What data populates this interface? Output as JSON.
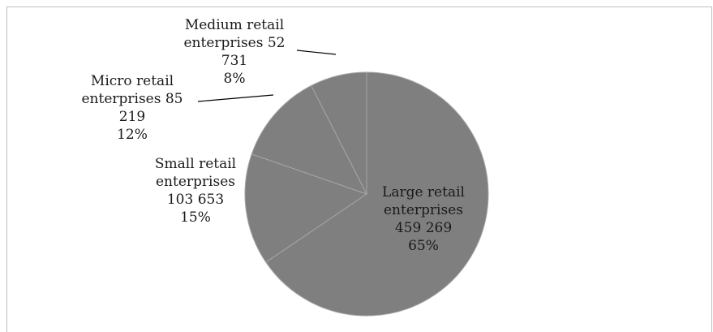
{
  "chart_data": {
    "type": "pie",
    "title": "",
    "slices": [
      {
        "name": "Large retail enterprises",
        "value": 459269,
        "value_label": "459 269",
        "percent": 65,
        "percent_label": "65%",
        "label_lines": [
          "Large retail",
          "enterprises",
          "459 269",
          "65%"
        ],
        "color": "#7f7f7f"
      },
      {
        "name": "Small retail enterprises",
        "value": 103653,
        "value_label": "103 653",
        "percent": 15,
        "percent_label": "15%",
        "label_lines": [
          "Small retail",
          "enterprises",
          "103 653",
          "15%"
        ],
        "color": "#7f7f7f"
      },
      {
        "name": "Micro retail enterprises",
        "value": 85219,
        "value_label": "85 219",
        "percent": 12,
        "percent_label": "12%",
        "label_lines": [
          "Micro retail",
          "enterprises 85",
          "219",
          "12%"
        ],
        "color": "#7f7f7f"
      },
      {
        "name": "Medium retail enterprises",
        "value": 52731,
        "value_label": "52 731",
        "percent": 8,
        "percent_label": "8%",
        "label_lines": [
          "Medium retail",
          "enterprises 52",
          "731",
          "8%"
        ],
        "color": "#7f7f7f"
      }
    ],
    "start_angle_deg": 0,
    "direction": "clockwise",
    "slice_border_color": "#a6a6a6",
    "leader_line_color": "#000000"
  }
}
